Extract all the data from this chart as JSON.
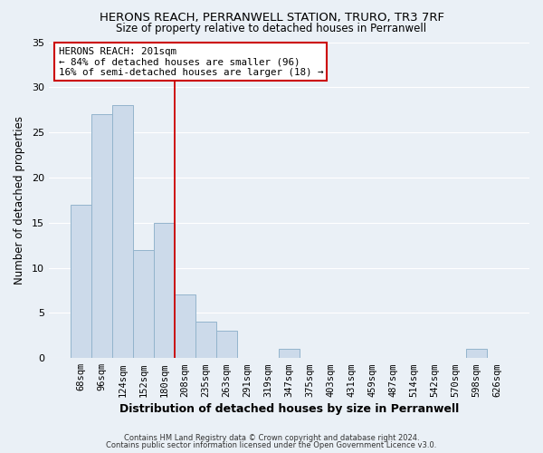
{
  "title_line1": "HERONS REACH, PERRANWELL STATION, TRURO, TR3 7RF",
  "title_line2": "Size of property relative to detached houses in Perranwell",
  "xlabel": "Distribution of detached houses by size in Perranwell",
  "ylabel": "Number of detached properties",
  "bar_labels": [
    "68sqm",
    "96sqm",
    "124sqm",
    "152sqm",
    "180sqm",
    "208sqm",
    "235sqm",
    "263sqm",
    "291sqm",
    "319sqm",
    "347sqm",
    "375sqm",
    "403sqm",
    "431sqm",
    "459sqm",
    "487sqm",
    "514sqm",
    "542sqm",
    "570sqm",
    "598sqm",
    "626sqm"
  ],
  "bar_values": [
    17,
    27,
    28,
    12,
    15,
    7,
    4,
    3,
    0,
    0,
    1,
    0,
    0,
    0,
    0,
    0,
    0,
    0,
    0,
    1,
    0
  ],
  "bar_color": "#ccdaea",
  "bar_edge_color": "#93b4cc",
  "vline_color": "#cc0000",
  "vline_x": 4.5,
  "ylim": [
    0,
    35
  ],
  "yticks": [
    0,
    5,
    10,
    15,
    20,
    25,
    30,
    35
  ],
  "annotation_title": "HERONS REACH: 201sqm",
  "annotation_line1": "← 84% of detached houses are smaller (96)",
  "annotation_line2": "16% of semi-detached houses are larger (18) →",
  "annotation_box_facecolor": "#ffffff",
  "annotation_box_edgecolor": "#cc0000",
  "footer_line1": "Contains HM Land Registry data © Crown copyright and database right 2024.",
  "footer_line2": "Contains public sector information licensed under the Open Government Licence v3.0.",
  "background_color": "#eaf0f6",
  "grid_color": "#ffffff",
  "title1_fontsize": 9.5,
  "title2_fontsize": 8.5,
  "xlabel_fontsize": 9,
  "ylabel_fontsize": 8.5,
  "tick_fontsize": 7.5,
  "ytick_fontsize": 8,
  "footer_fontsize": 6.0,
  "ann_fontsize": 7.8
}
